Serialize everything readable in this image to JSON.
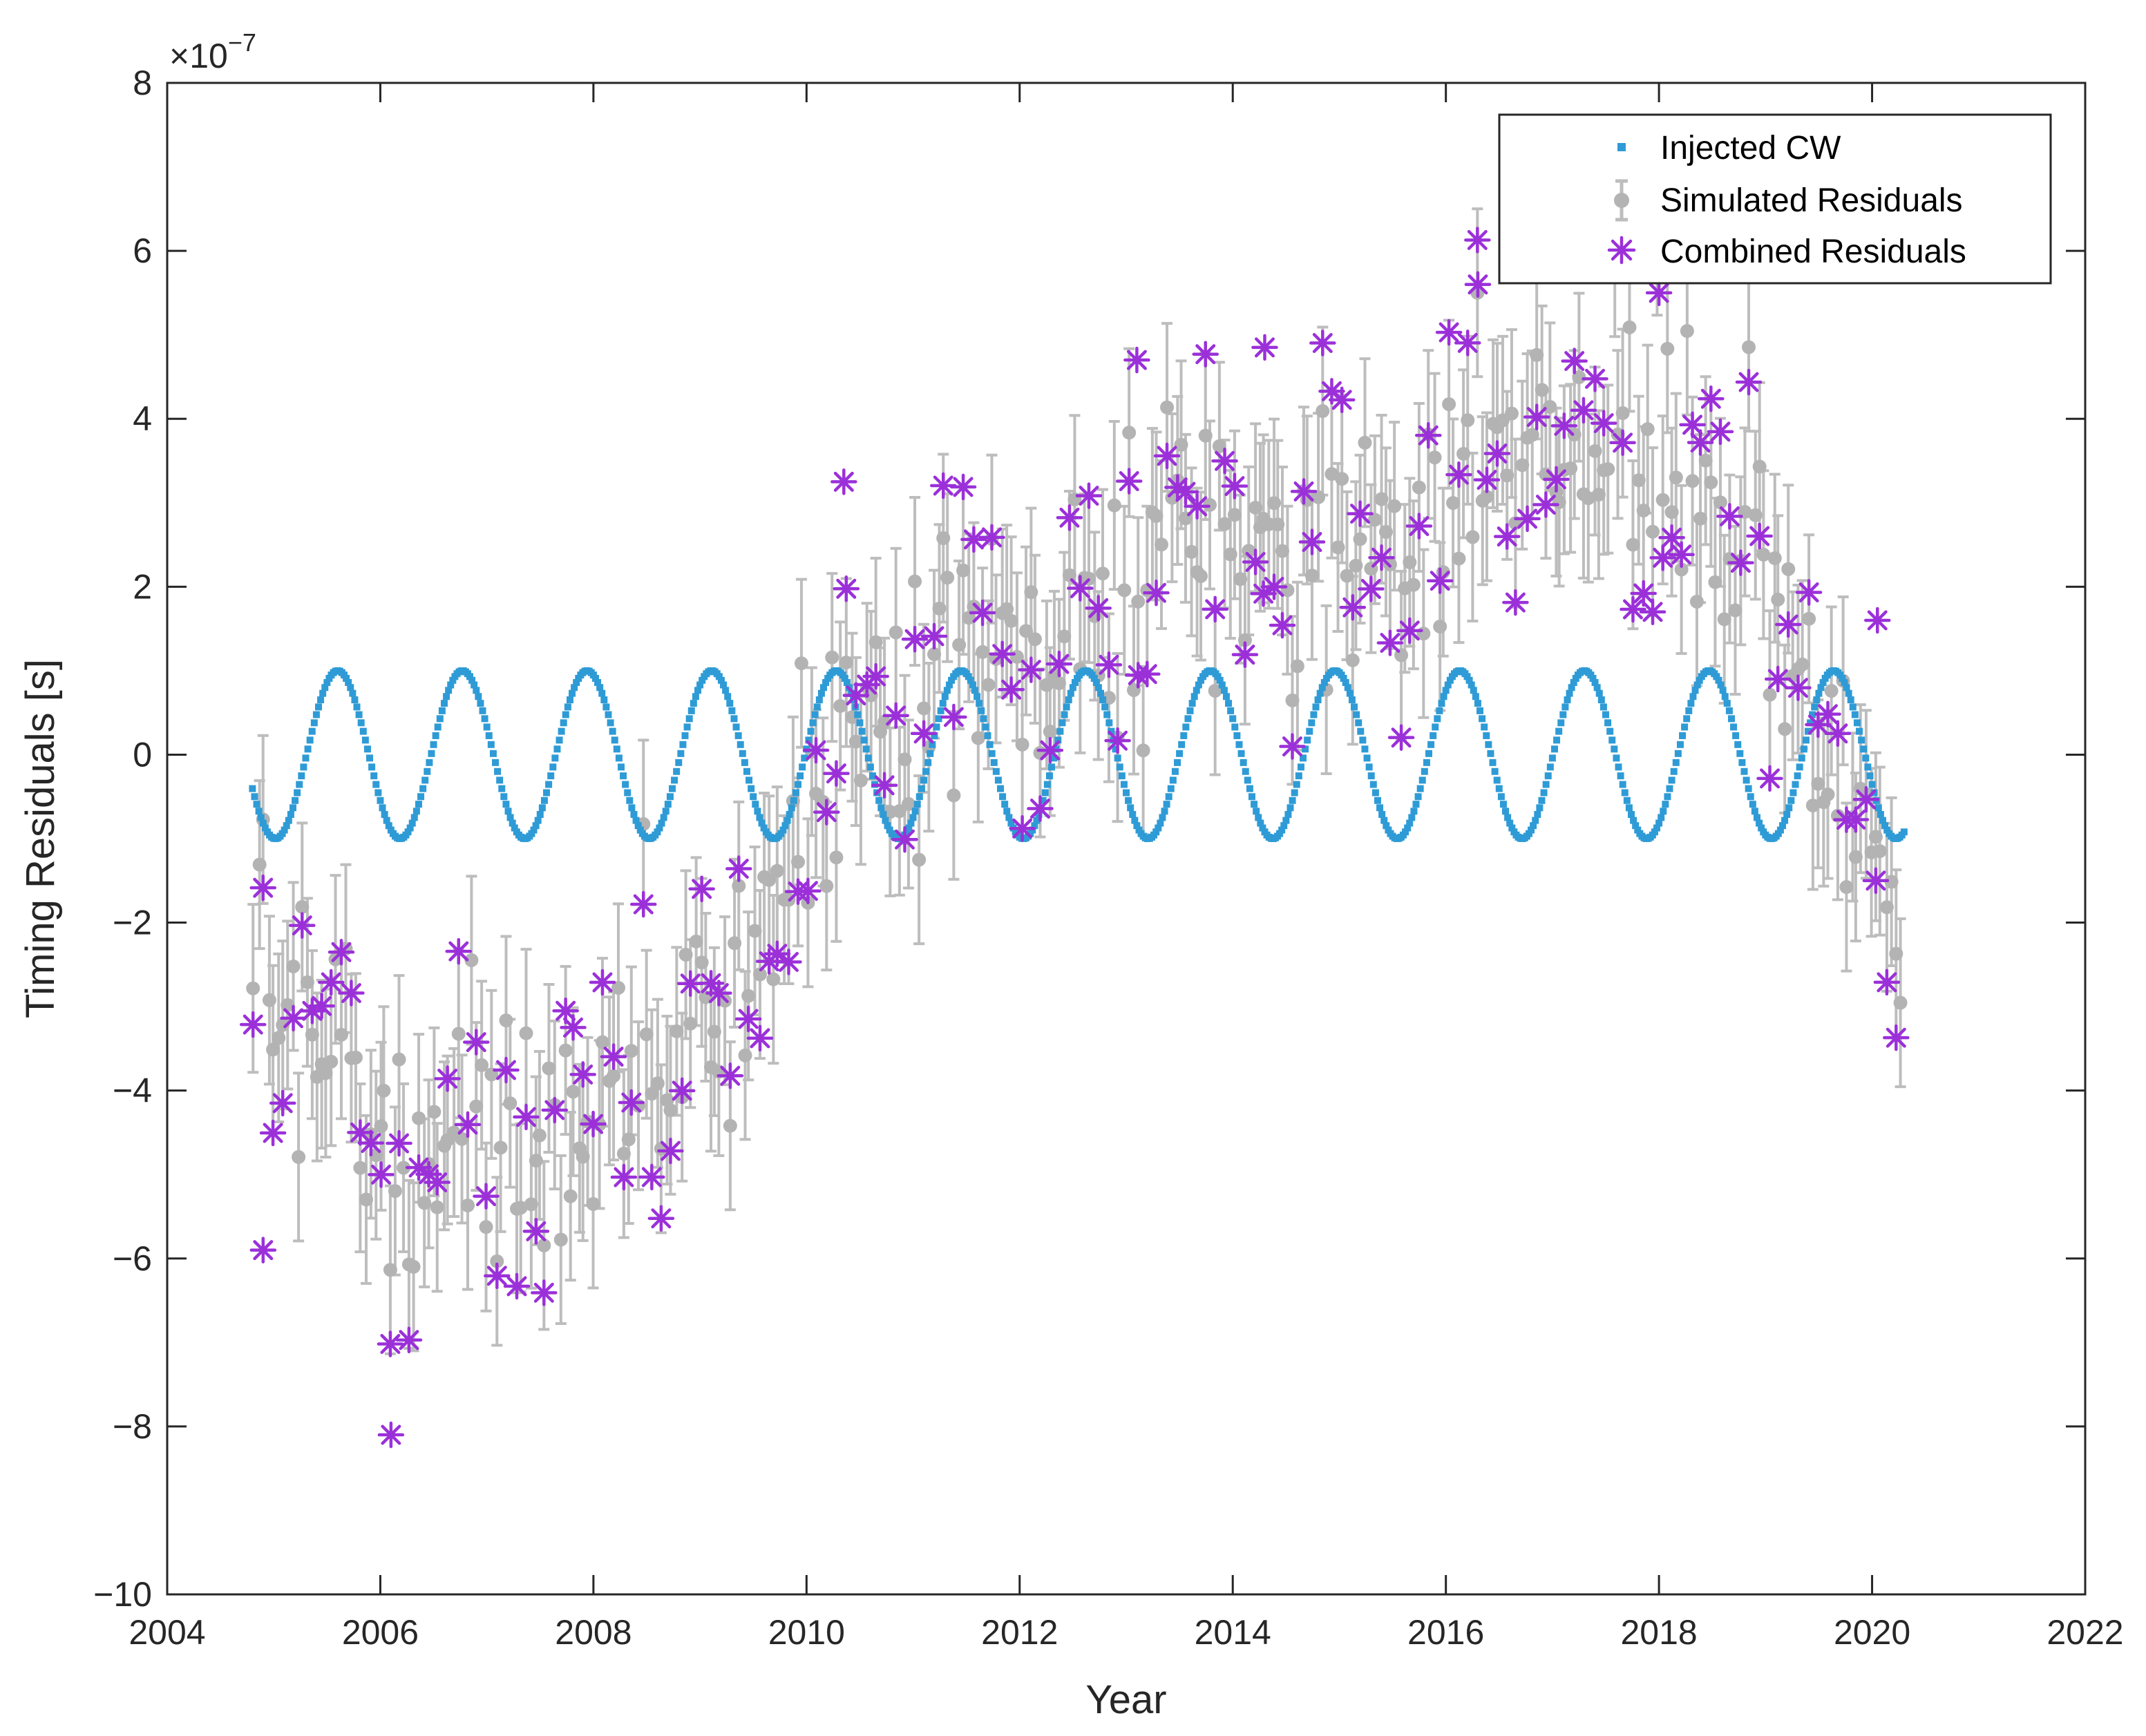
{
  "colors": {
    "injected": "#2E9BD6",
    "simulated": "#B3B3B3",
    "simulated_errorbar": "#BDBDBD",
    "combined": "#9B30D9",
    "axis": "#262626"
  },
  "chart_data": {
    "type": "scatter",
    "title": "",
    "xlabel": "Year",
    "ylabel": "Timing Residuals [s]",
    "y_exponent_label": "×10",
    "y_exponent_power": "−7",
    "y_multiplier": 1e-07,
    "xlim": [
      2004,
      2022
    ],
    "ylim": [
      -10,
      8
    ],
    "xticks": [
      2004,
      2006,
      2008,
      2010,
      2012,
      2014,
      2016,
      2018,
      2020,
      2022
    ],
    "xtick_labels": [
      "2004",
      "2006",
      "2008",
      "2010",
      "2012",
      "2014",
      "2016",
      "2018",
      "2020",
      "2022"
    ],
    "yticks": [
      -10,
      -8,
      -6,
      -4,
      -2,
      0,
      2,
      4,
      6,
      8
    ],
    "ytick_labels": [
      "−10",
      "−8",
      "−6",
      "−4",
      "−2",
      "0",
      "2",
      "4",
      "6",
      "8"
    ],
    "grid": false,
    "legend_position": "top-right",
    "series": [
      {
        "name": "Injected CW",
        "marker": "small-square",
        "model": "sinusoid",
        "amplitude": 1.0,
        "period_years": 1.17,
        "peak_year": 2005.6,
        "x_start": 2004.8,
        "x_end": 2020.3,
        "sample_step_years": 0.02
      },
      {
        "name": "Simulated Residuals",
        "marker": "filled-circle-with-errorbar",
        "trend_x": [
          2004.8,
          2005.5,
          2006.0,
          2006.5,
          2007.0,
          2007.5,
          2008.0,
          2008.5,
          2009.0,
          2009.5,
          2010.0,
          2010.5,
          2011.0,
          2011.5,
          2012.0,
          2012.5,
          2013.0,
          2013.5,
          2014.0,
          2014.5,
          2015.0,
          2015.5,
          2016.0,
          2016.5,
          2017.0,
          2017.5,
          2018.0,
          2018.5,
          2019.0,
          2019.5,
          2020.0,
          2020.3
        ],
        "trend_y": [
          -2.5,
          -3.5,
          -4.6,
          -4.8,
          -4.7,
          -4.6,
          -4.3,
          -4.0,
          -3.2,
          -2.2,
          -0.3,
          0.6,
          0.5,
          0.8,
          0.9,
          1.4,
          2.2,
          2.5,
          2.6,
          2.4,
          2.5,
          2.6,
          3.2,
          3.5,
          3.7,
          3.8,
          3.6,
          3.0,
          2.2,
          0.3,
          -1.3,
          -2.3
        ],
        "scatter_sd": 0.85,
        "errorbar_halfwidth": 1.0,
        "point_count": 340,
        "random_seed": 7
      },
      {
        "name": "Combined Residuals",
        "marker": "asterisk",
        "definition": "Simulated Residuals + Injected CW",
        "highlight_points": [
          {
            "x": 2006.1,
            "y": -8.1
          },
          {
            "x": 2013.1,
            "y": 4.7
          },
          {
            "x": 2014.3,
            "y": 4.85
          },
          {
            "x": 2016.3,
            "y": 5.6
          },
          {
            "x": 2010.35,
            "y": 3.25
          },
          {
            "x": 2018.0,
            "y": 5.5
          },
          {
            "x": 2020.05,
            "y": 1.6
          },
          {
            "x": 2004.9,
            "y": -5.9
          }
        ]
      }
    ]
  }
}
